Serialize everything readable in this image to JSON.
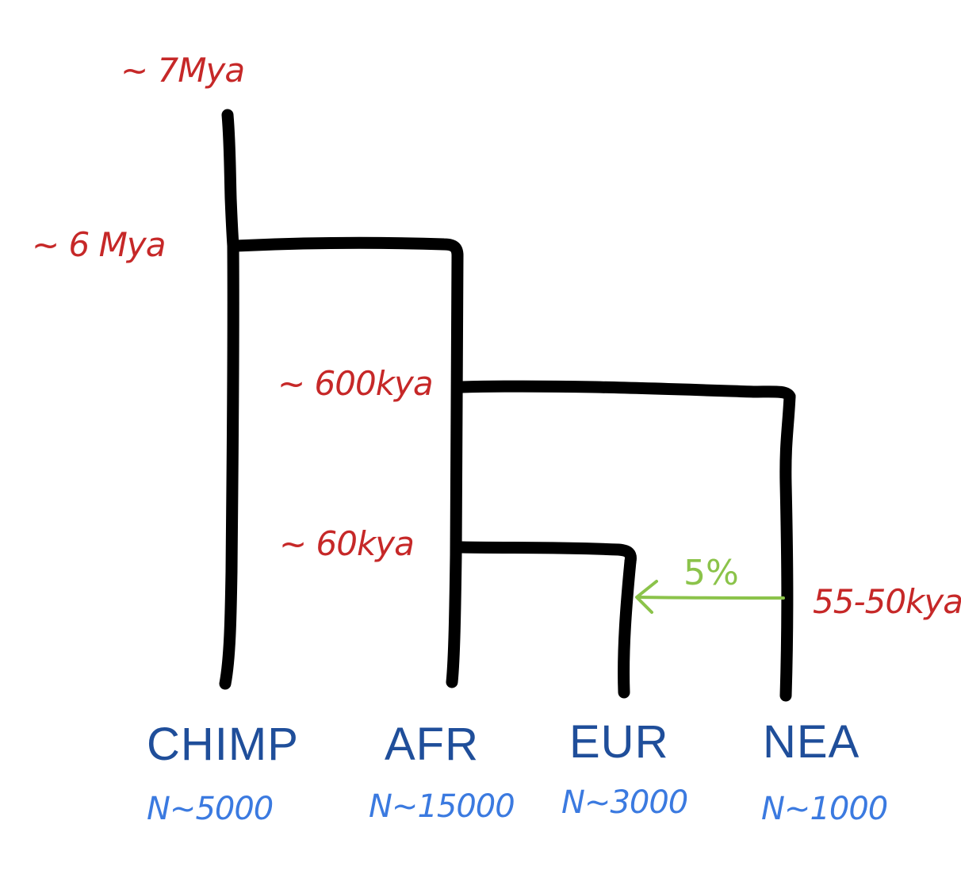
{
  "times": {
    "root": "~ 7Mya",
    "chimp_split": "~ 6 Mya",
    "nea_split": "~ 600kya",
    "eur_split": "~ 60kya",
    "admixture": "55-50kya"
  },
  "populations": [
    {
      "name": "CHIMP",
      "size": "N~5000"
    },
    {
      "name": "AFR",
      "size": "N~15000"
    },
    {
      "name": "EUR",
      "size": "N~3000"
    },
    {
      "name": "NEA",
      "size": "N~1000"
    }
  ],
  "admixture": {
    "percent": "5%",
    "from": "NEA",
    "to": "EUR"
  },
  "colors": {
    "branches": "#000000",
    "time_labels": "#c62828",
    "population_names": "#1f4e9a",
    "population_sizes": "#3b7ae0",
    "admixture": "#8bc34a"
  }
}
